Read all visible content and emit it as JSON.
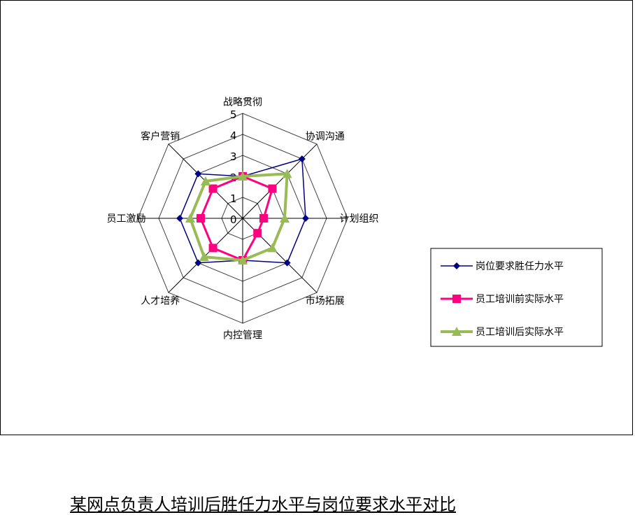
{
  "chart_data": {
    "type": "radar",
    "title": "某网点负责人培训后胜任力水平与岗位要求水平对比",
    "categories": [
      "战略贯彻",
      "协调沟通",
      "计划组织",
      "市场拓展",
      "内控管理",
      "人才培养",
      "员工激励",
      "客户营销"
    ],
    "rlim": [
      0,
      5
    ],
    "ticks": [
      "0",
      "1",
      "2",
      "3",
      "4",
      "5"
    ],
    "grid": true,
    "legend": "right",
    "series": [
      {
        "name": "岗位要求胜任力水平",
        "color": "#000080",
        "marker": "diamond",
        "values": [
          2,
          4,
          3,
          3,
          2,
          3,
          3,
          3
        ]
      },
      {
        "name": "员工培训前实际水平",
        "color": "#ff0080",
        "marker": "square",
        "values": [
          2,
          2,
          1,
          1,
          2,
          2,
          2,
          2
        ]
      },
      {
        "name": "员工培训后实际水平",
        "color": "#99bb55",
        "marker": "triangle",
        "values": [
          2,
          3,
          2,
          2,
          2,
          2.6,
          2.5,
          2.5
        ]
      }
    ]
  }
}
